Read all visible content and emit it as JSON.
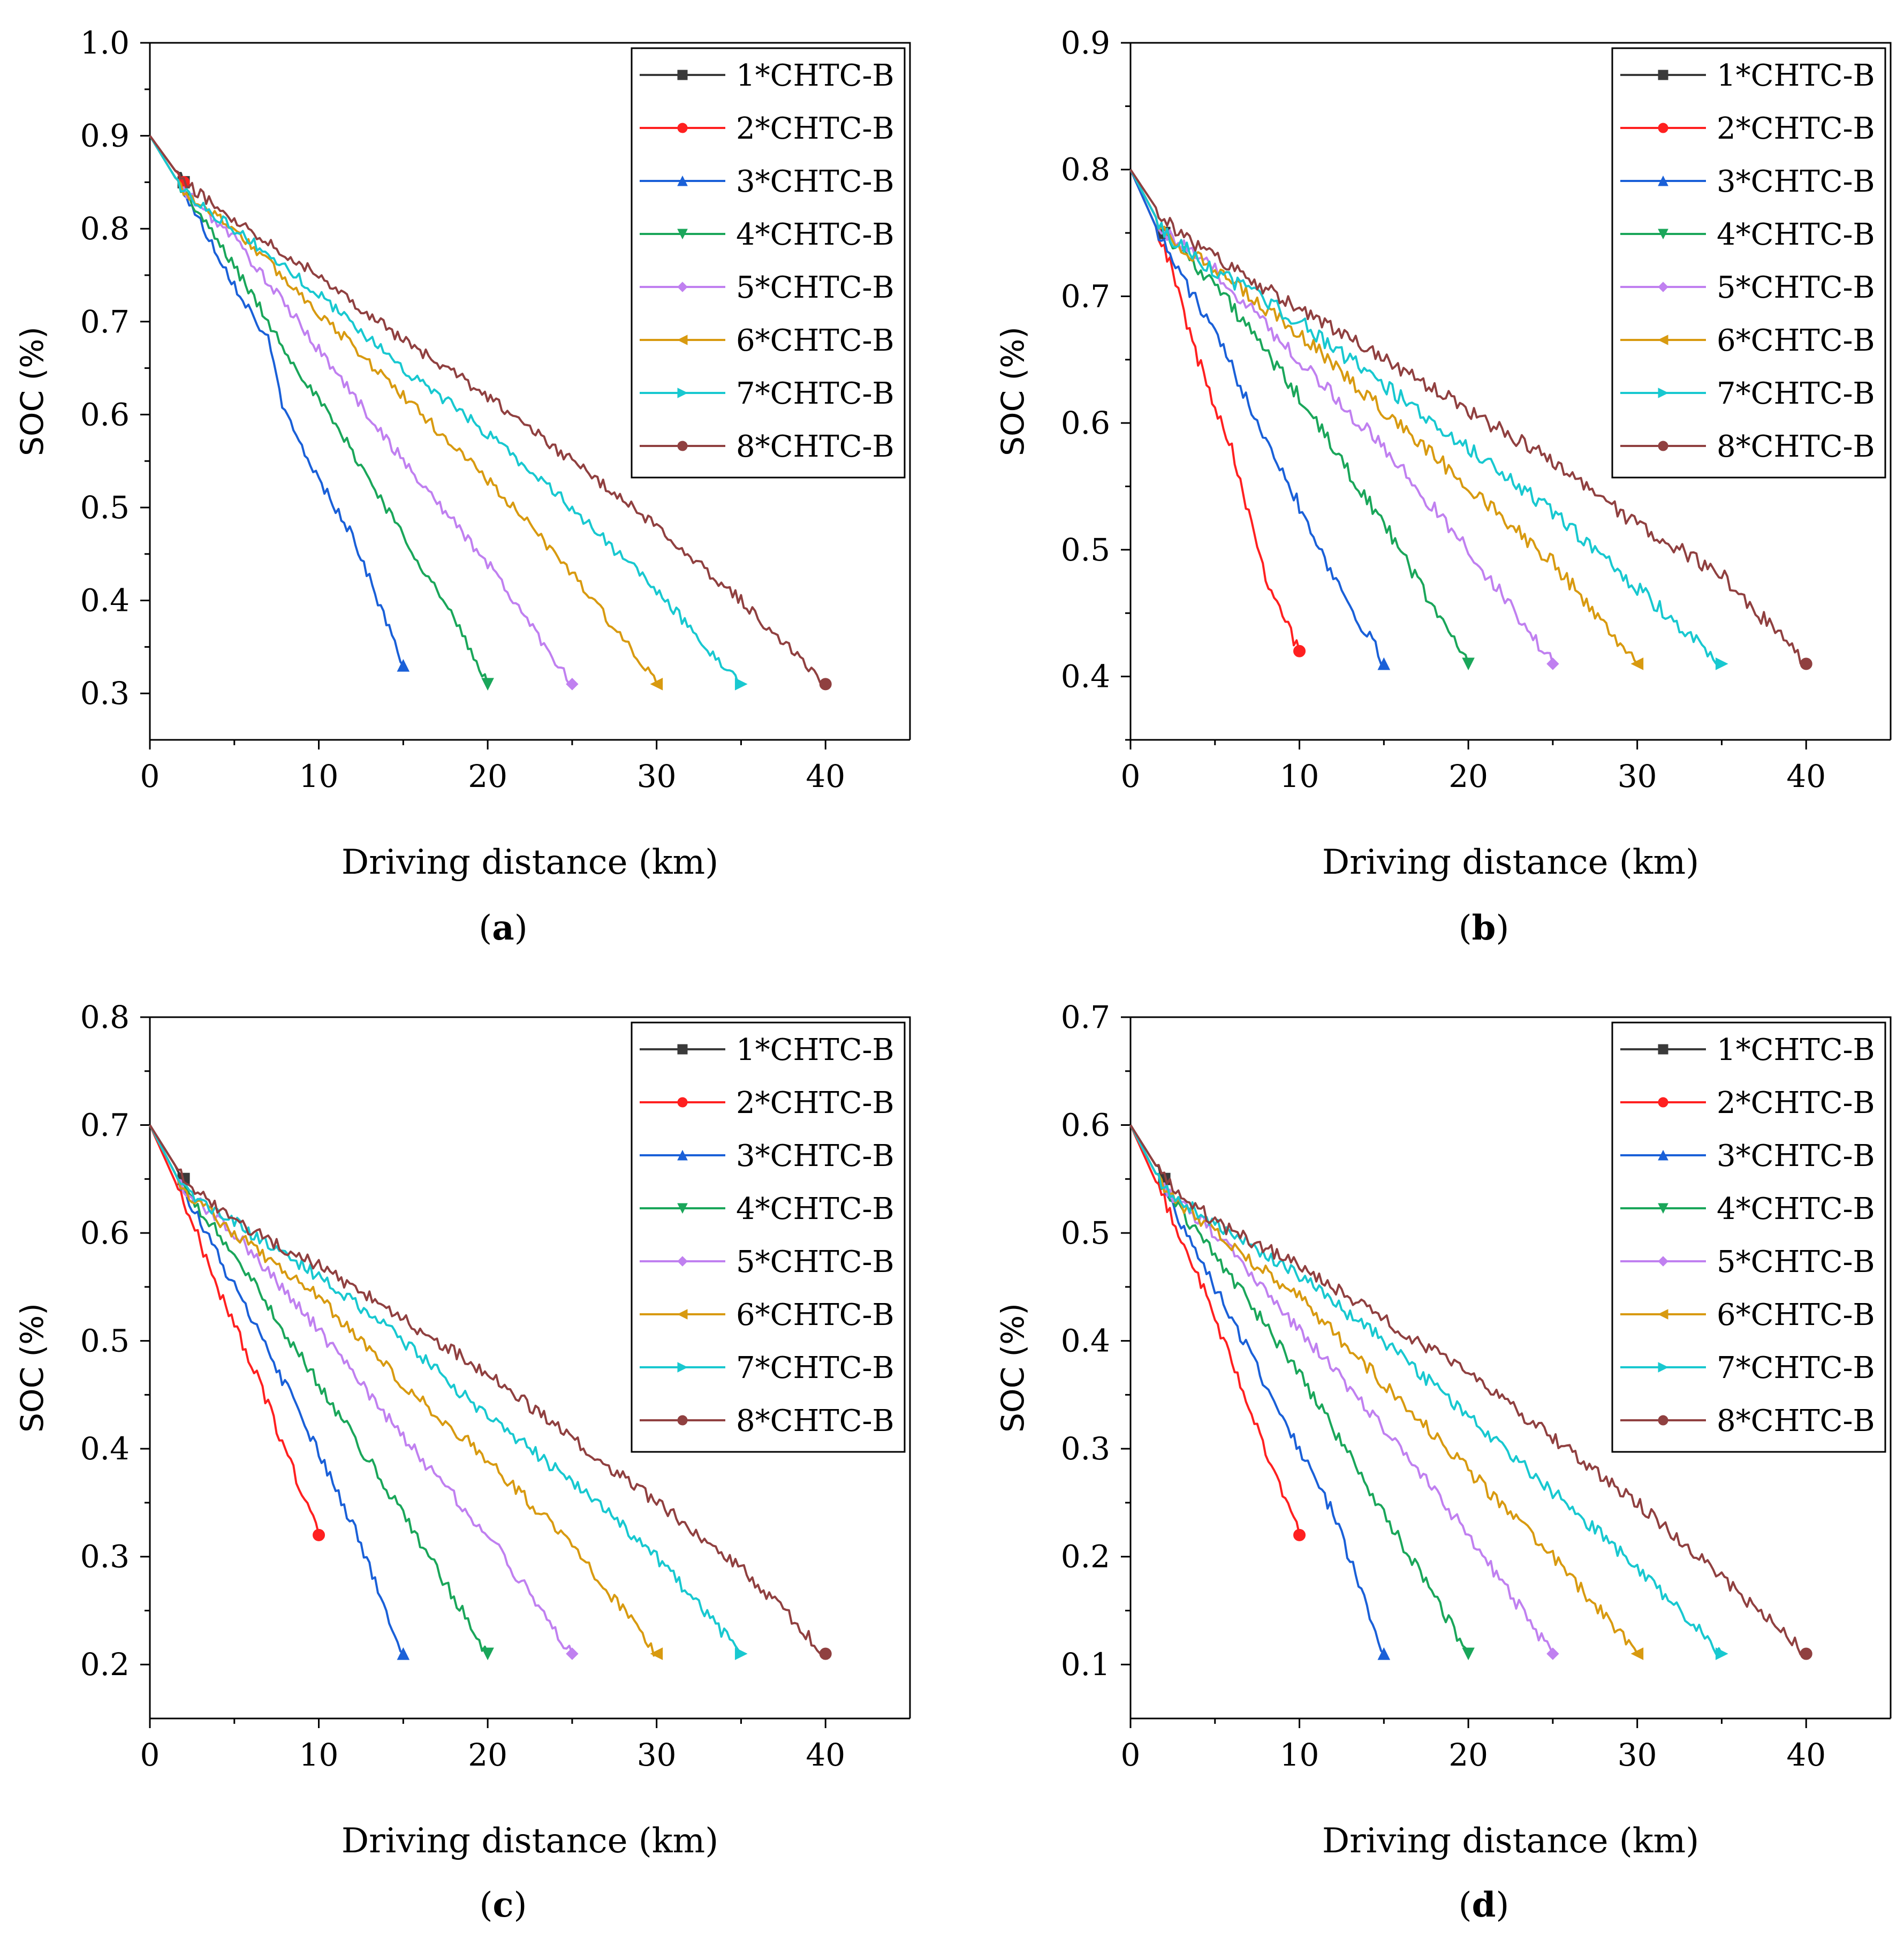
{
  "figure": {
    "xlabel": "Driving distance (km)",
    "ylabel": "SOC (%)",
    "series_names": [
      "1*CHTC-B",
      "2*CHTC-B",
      "3*CHTC-B",
      "4*CHTC-B",
      "5*CHTC-B",
      "6*CHTC-B",
      "7*CHTC-B",
      "8*CHTC-B"
    ],
    "series_colors": [
      "#3a3a3a",
      "#ff2020",
      "#1a60d8",
      "#1aa65a",
      "#c080f0",
      "#d89a10",
      "#18c8d0",
      "#904040"
    ],
    "series_markers": [
      "square",
      "circle",
      "triangle-up",
      "triangle-down",
      "diamond",
      "triangle-left",
      "triangle-right",
      "circle"
    ]
  },
  "chart_data": [
    {
      "type": "line",
      "panel_label": "a",
      "xlabel": "Driving distance (km)",
      "ylabel": "SOC (%)",
      "xlim": [
        0,
        45
      ],
      "ylim": [
        0.25,
        1.0
      ],
      "xticks": [
        0,
        10,
        20,
        30,
        40
      ],
      "xtick_labels": [
        "0",
        "10",
        "20",
        "30",
        "40"
      ],
      "yticks": [
        0.3,
        0.4,
        0.5,
        0.6,
        0.7,
        0.8,
        0.9,
        1.0
      ],
      "ytick_labels": [
        "0.3",
        "0.4",
        "0.5",
        "0.6",
        "0.7",
        "0.8",
        "0.9",
        "1.0"
      ],
      "legend_position": "top-right",
      "series": [
        {
          "name": "1*CHTC-B",
          "x": [
            0,
            2
          ],
          "y": [
            0.9,
            0.85
          ]
        },
        {
          "name": "2*CHTC-B",
          "x": [
            0,
            2
          ],
          "y": [
            0.9,
            0.85
          ]
        },
        {
          "name": "3*CHTC-B",
          "x": [
            0,
            2,
            5,
            7,
            8,
            10,
            12,
            15
          ],
          "y": [
            0.9,
            0.84,
            0.74,
            0.68,
            0.6,
            0.53,
            0.47,
            0.33
          ]
        },
        {
          "name": "4*CHTC-B",
          "x": [
            0,
            2,
            5,
            8,
            12,
            15,
            18,
            20
          ],
          "y": [
            0.9,
            0.84,
            0.76,
            0.67,
            0.56,
            0.47,
            0.38,
            0.31
          ]
        },
        {
          "name": "5*CHTC-B",
          "x": [
            0,
            2,
            5,
            10,
            15,
            20,
            25
          ],
          "y": [
            0.9,
            0.84,
            0.79,
            0.67,
            0.55,
            0.44,
            0.31
          ]
        },
        {
          "name": "6*CHTC-B",
          "x": [
            0,
            2,
            5,
            10,
            15,
            20,
            25,
            30
          ],
          "y": [
            0.9,
            0.84,
            0.8,
            0.71,
            0.62,
            0.53,
            0.43,
            0.31
          ]
        },
        {
          "name": "7*CHTC-B",
          "x": [
            0,
            2,
            5,
            10,
            15,
            20,
            25,
            30,
            35
          ],
          "y": [
            0.9,
            0.84,
            0.8,
            0.73,
            0.65,
            0.58,
            0.5,
            0.41,
            0.31
          ]
        },
        {
          "name": "8*CHTC-B",
          "x": [
            0,
            2,
            5,
            10,
            15,
            20,
            25,
            30,
            35,
            40
          ],
          "y": [
            0.9,
            0.85,
            0.81,
            0.75,
            0.68,
            0.62,
            0.55,
            0.48,
            0.4,
            0.31
          ]
        }
      ]
    },
    {
      "type": "line",
      "panel_label": "b",
      "xlabel": "Driving distance (km)",
      "ylabel": "SOC (%)",
      "xlim": [
        0,
        45
      ],
      "ylim": [
        0.35,
        0.9
      ],
      "xticks": [
        0,
        10,
        20,
        30,
        40
      ],
      "xtick_labels": [
        "0",
        "10",
        "20",
        "30",
        "40"
      ],
      "yticks": [
        0.4,
        0.5,
        0.6,
        0.7,
        0.8,
        0.9
      ],
      "ytick_labels": [
        "0.4",
        "0.5",
        "0.6",
        "0.7",
        "0.8",
        "0.9"
      ],
      "legend_position": "top-right",
      "series": [
        {
          "name": "1*CHTC-B",
          "x": [
            0,
            2
          ],
          "y": [
            0.8,
            0.75
          ]
        },
        {
          "name": "2*CHTC-B",
          "x": [
            0,
            2,
            4,
            6,
            8,
            10
          ],
          "y": [
            0.8,
            0.74,
            0.65,
            0.58,
            0.48,
            0.42
          ]
        },
        {
          "name": "3*CHTC-B",
          "x": [
            0,
            2,
            5,
            8,
            12,
            15
          ],
          "y": [
            0.8,
            0.74,
            0.67,
            0.59,
            0.48,
            0.41
          ]
        },
        {
          "name": "4*CHTC-B",
          "x": [
            0,
            2,
            5,
            10,
            15,
            20
          ],
          "y": [
            0.8,
            0.75,
            0.71,
            0.62,
            0.52,
            0.41
          ]
        },
        {
          "name": "5*CHTC-B",
          "x": [
            0,
            2,
            5,
            10,
            15,
            20,
            25
          ],
          "y": [
            0.8,
            0.75,
            0.72,
            0.65,
            0.58,
            0.5,
            0.41
          ]
        },
        {
          "name": "6*CHTC-B",
          "x": [
            0,
            2,
            5,
            10,
            15,
            20,
            25,
            30
          ],
          "y": [
            0.8,
            0.75,
            0.72,
            0.67,
            0.61,
            0.55,
            0.49,
            0.41
          ]
        },
        {
          "name": "7*CHTC-B",
          "x": [
            0,
            2,
            5,
            10,
            15,
            20,
            25,
            30,
            35
          ],
          "y": [
            0.8,
            0.75,
            0.72,
            0.68,
            0.63,
            0.58,
            0.53,
            0.47,
            0.41
          ]
        },
        {
          "name": "8*CHTC-B",
          "x": [
            0,
            2,
            5,
            10,
            15,
            20,
            25,
            30,
            35,
            40
          ],
          "y": [
            0.8,
            0.76,
            0.73,
            0.69,
            0.65,
            0.61,
            0.57,
            0.52,
            0.48,
            0.41
          ]
        }
      ]
    },
    {
      "type": "line",
      "panel_label": "c",
      "xlabel": "Driving distance (km)",
      "ylabel": "SOC (%)",
      "xlim": [
        0,
        45
      ],
      "ylim": [
        0.15,
        0.8
      ],
      "xticks": [
        0,
        10,
        20,
        30,
        40
      ],
      "xtick_labels": [
        "0",
        "10",
        "20",
        "30",
        "40"
      ],
      "yticks": [
        0.2,
        0.3,
        0.4,
        0.5,
        0.6,
        0.7,
        0.8
      ],
      "ytick_labels": [
        "0.2",
        "0.3",
        "0.4",
        "0.5",
        "0.6",
        "0.7",
        "0.8"
      ],
      "legend_position": "top-right",
      "series": [
        {
          "name": "1*CHTC-B",
          "x": [
            0,
            2
          ],
          "y": [
            0.7,
            0.65
          ]
        },
        {
          "name": "2*CHTC-B",
          "x": [
            0,
            2,
            4,
            6,
            8,
            10
          ],
          "y": [
            0.7,
            0.63,
            0.55,
            0.48,
            0.4,
            0.32
          ]
        },
        {
          "name": "3*CHTC-B",
          "x": [
            0,
            2,
            5,
            8,
            12,
            15
          ],
          "y": [
            0.7,
            0.64,
            0.55,
            0.46,
            0.33,
            0.21
          ]
        },
        {
          "name": "4*CHTC-B",
          "x": [
            0,
            2,
            5,
            10,
            15,
            20
          ],
          "y": [
            0.7,
            0.64,
            0.58,
            0.46,
            0.34,
            0.21
          ]
        },
        {
          "name": "5*CHTC-B",
          "x": [
            0,
            2,
            5,
            10,
            15,
            20,
            25
          ],
          "y": [
            0.7,
            0.64,
            0.6,
            0.51,
            0.41,
            0.32,
            0.21
          ]
        },
        {
          "name": "6*CHTC-B",
          "x": [
            0,
            2,
            5,
            10,
            15,
            20,
            25,
            30
          ],
          "y": [
            0.7,
            0.64,
            0.6,
            0.54,
            0.46,
            0.39,
            0.31,
            0.21
          ]
        },
        {
          "name": "7*CHTC-B",
          "x": [
            0,
            2,
            5,
            10,
            15,
            20,
            25,
            30,
            35
          ],
          "y": [
            0.7,
            0.64,
            0.61,
            0.56,
            0.5,
            0.43,
            0.37,
            0.3,
            0.21
          ]
        },
        {
          "name": "8*CHTC-B",
          "x": [
            0,
            2,
            5,
            10,
            15,
            20,
            25,
            30,
            35,
            40
          ],
          "y": [
            0.7,
            0.65,
            0.61,
            0.57,
            0.52,
            0.47,
            0.41,
            0.35,
            0.29,
            0.21
          ]
        }
      ]
    },
    {
      "type": "line",
      "panel_label": "d",
      "xlabel": "Driving distance (km)",
      "ylabel": "SOC (%)",
      "xlim": [
        0,
        45
      ],
      "ylim": [
        0.05,
        0.7
      ],
      "xticks": [
        0,
        10,
        20,
        30,
        40
      ],
      "xtick_labels": [
        "0",
        "10",
        "20",
        "30",
        "40"
      ],
      "yticks": [
        0.1,
        0.2,
        0.3,
        0.4,
        0.5,
        0.6,
        0.7
      ],
      "ytick_labels": [
        "0.1",
        "0.2",
        "0.3",
        "0.4",
        "0.5",
        "0.6",
        "0.7"
      ],
      "legend_position": "top-right",
      "series": [
        {
          "name": "1*CHTC-B",
          "x": [
            0,
            2
          ],
          "y": [
            0.6,
            0.55
          ]
        },
        {
          "name": "2*CHTC-B",
          "x": [
            0,
            2,
            4,
            6,
            8,
            10
          ],
          "y": [
            0.6,
            0.53,
            0.46,
            0.38,
            0.3,
            0.22
          ]
        },
        {
          "name": "3*CHTC-B",
          "x": [
            0,
            2,
            5,
            8,
            12,
            15
          ],
          "y": [
            0.6,
            0.54,
            0.45,
            0.36,
            0.24,
            0.11
          ]
        },
        {
          "name": "4*CHTC-B",
          "x": [
            0,
            2,
            5,
            10,
            15,
            20
          ],
          "y": [
            0.6,
            0.54,
            0.48,
            0.37,
            0.24,
            0.11
          ]
        },
        {
          "name": "5*CHTC-B",
          "x": [
            0,
            2,
            5,
            10,
            15,
            20,
            25
          ],
          "y": [
            0.6,
            0.54,
            0.5,
            0.41,
            0.32,
            0.22,
            0.11
          ]
        },
        {
          "name": "6*CHTC-B",
          "x": [
            0,
            2,
            5,
            10,
            15,
            20,
            25,
            30
          ],
          "y": [
            0.6,
            0.54,
            0.5,
            0.44,
            0.36,
            0.28,
            0.2,
            0.11
          ]
        },
        {
          "name": "7*CHTC-B",
          "x": [
            0,
            2,
            5,
            10,
            15,
            20,
            25,
            30,
            35
          ],
          "y": [
            0.6,
            0.54,
            0.51,
            0.46,
            0.4,
            0.33,
            0.26,
            0.19,
            0.11
          ]
        },
        {
          "name": "8*CHTC-B",
          "x": [
            0,
            2,
            5,
            10,
            15,
            20,
            25,
            30,
            35,
            40
          ],
          "y": [
            0.6,
            0.55,
            0.51,
            0.47,
            0.42,
            0.37,
            0.31,
            0.25,
            0.18,
            0.11
          ]
        }
      ]
    }
  ]
}
